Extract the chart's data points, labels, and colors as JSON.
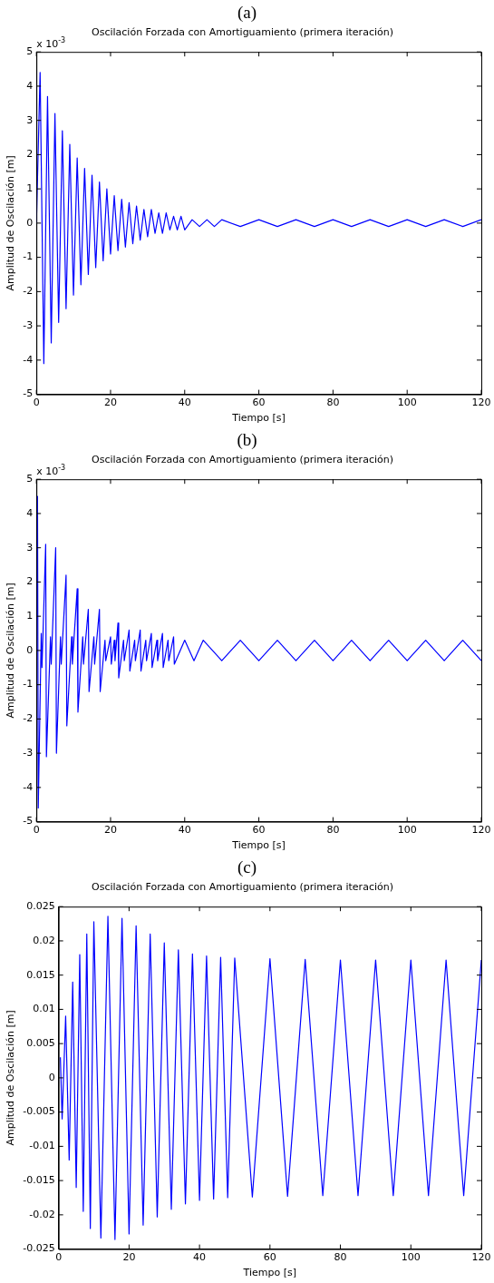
{
  "chart_data": [
    {
      "type": "line",
      "title": "(a)",
      "subtitle": "Oscilación Forzada con Amortiguamiento (primera iteración)",
      "xlabel": "Tiempo [s]",
      "ylabel": "Amplitud de Oscilación [m]",
      "annotations": [
        "x 10$^{-3}$"
      ],
      "color": "#0000ff",
      "marker": "none",
      "grid": false,
      "x": [
        0,
        1,
        2,
        3,
        4,
        5,
        6,
        7,
        8,
        9,
        10,
        11,
        12,
        13,
        14,
        15,
        16,
        17,
        18,
        19,
        20,
        21,
        22,
        23,
        24,
        25,
        26,
        27,
        28,
        29,
        30,
        31,
        32,
        33,
        34,
        35,
        36,
        37,
        38,
        39,
        40,
        42,
        44,
        46,
        48,
        50,
        55,
        60,
        65,
        70,
        75,
        80,
        85,
        90,
        95,
        100,
        105,
        110,
        115,
        120
      ],
      "values": [
        0,
        4.4,
        -4.1,
        3.7,
        -3.5,
        3.2,
        -2.9,
        2.7,
        -2.5,
        2.3,
        -2.1,
        1.9,
        -1.8,
        1.6,
        -1.5,
        1.4,
        -1.3,
        1.2,
        -1.1,
        1.0,
        -0.9,
        0.8,
        -0.8,
        0.7,
        -0.7,
        0.6,
        -0.6,
        0.5,
        -0.5,
        0.4,
        -0.4,
        0.4,
        -0.3,
        0.3,
        -0.3,
        0.3,
        -0.2,
        0.2,
        -0.2,
        0.2,
        -0.2,
        0.1,
        -0.1,
        0.1,
        -0.1,
        0.1,
        -0.1,
        0.1,
        -0.1,
        0.1,
        -0.1,
        0.1,
        -0.1,
        0.1,
        -0.1,
        0.1,
        -0.1,
        0.1,
        -0.1,
        0.1
      ],
      "xlim": [
        0,
        120
      ],
      "xticks": [
        0,
        20,
        40,
        60,
        80,
        100,
        120
      ],
      "ylim": [
        -5,
        5
      ],
      "yticks": [
        -5,
        -4,
        -3,
        -2,
        -1,
        0,
        1,
        2,
        3,
        4,
        5
      ]
    },
    {
      "type": "line",
      "title": "(b)",
      "subtitle": "Oscilación Forzada con Amortiguamiento (primera iteración)",
      "xlabel": "Tiempo [s]",
      "ylabel": "Amplitud de Oscilación [m]",
      "annotations": [
        "x 10$^{-3}$"
      ],
      "color": "#0000ff",
      "marker": "none",
      "grid": false,
      "x": [
        0,
        0.3,
        0.5,
        1.3,
        1.5,
        2.5,
        2.7,
        3.8,
        4,
        5.2,
        5.4,
        6.5,
        6.7,
        8,
        8.2,
        9.5,
        9.7,
        11,
        11.2,
        12.5,
        12.7,
        14,
        14.2,
        15.5,
        15.7,
        17,
        17.2,
        18.5,
        18.7,
        20,
        20.2,
        21,
        21.2,
        22,
        22.2,
        23.5,
        23.7,
        25,
        25.2,
        26.5,
        26.7,
        28,
        28.2,
        29.5,
        29.7,
        31,
        31.2,
        32.5,
        32.7,
        34,
        34.2,
        35.5,
        35.7,
        37,
        37.2,
        40,
        42.5,
        45,
        50,
        55,
        60,
        65,
        70,
        75,
        80,
        85,
        90,
        95,
        100,
        105,
        110,
        115,
        120
      ],
      "values": [
        0,
        4.5,
        -4.6,
        0.5,
        -0.5,
        3.1,
        -3.1,
        0.4,
        -0.4,
        3.0,
        -3.0,
        0.4,
        -0.4,
        2.2,
        -2.2,
        0.4,
        -0.4,
        1.8,
        -1.8,
        0.4,
        -0.4,
        1.2,
        -1.2,
        0.4,
        -0.4,
        1.2,
        -1.2,
        0.3,
        -0.3,
        0.4,
        -0.4,
        0.3,
        -0.3,
        0.8,
        -0.8,
        0.3,
        -0.3,
        0.6,
        -0.6,
        0.3,
        -0.3,
        0.6,
        -0.6,
        0.3,
        -0.3,
        0.5,
        -0.5,
        0.3,
        -0.3,
        0.5,
        -0.5,
        0.3,
        -0.3,
        0.4,
        -0.4,
        0.3,
        -0.3,
        0.3,
        -0.3,
        0.3,
        -0.3,
        0.3,
        -0.3,
        0.3,
        -0.3,
        0.3,
        -0.3,
        0.3,
        -0.3,
        0.3,
        -0.3,
        0.3,
        -0.3
      ],
      "xlim": [
        0,
        120
      ],
      "xticks": [
        0,
        20,
        40,
        60,
        80,
        100,
        120
      ],
      "ylim": [
        -5,
        5
      ],
      "yticks": [
        -5,
        -4,
        -3,
        -2,
        -1,
        0,
        1,
        2,
        3,
        4,
        5
      ]
    },
    {
      "type": "line",
      "title": "(c)",
      "subtitle": "Oscilación Forzada con Amortiguamiento (primera iteración)",
      "xlabel": "Tiempo [s]",
      "ylabel": "Amplitud de Oscilación [m]",
      "color": "#0000ff",
      "marker": "none",
      "grid": false,
      "x": [
        0.5,
        1,
        2,
        3,
        4,
        5,
        6,
        7,
        8,
        9,
        10,
        12,
        14,
        16,
        18,
        20,
        22,
        24,
        26,
        28,
        30,
        32,
        34,
        36,
        38,
        40,
        42,
        44,
        46,
        48,
        50,
        55,
        60,
        65,
        70,
        75,
        80,
        85,
        90,
        95,
        100,
        105,
        110,
        115,
        120
      ],
      "values": [
        0.003,
        -0.006,
        0.009,
        -0.012,
        0.014,
        -0.016,
        0.018,
        -0.0195,
        0.021,
        -0.022,
        0.0228,
        -0.0234,
        0.0236,
        -0.0236,
        0.0233,
        -0.0228,
        0.0222,
        -0.0215,
        0.021,
        -0.0203,
        0.0197,
        -0.0192,
        0.0187,
        -0.0184,
        0.0181,
        -0.0179,
        0.0178,
        -0.0177,
        0.0176,
        -0.0175,
        0.0175,
        -0.0174,
        0.0174,
        -0.0173,
        0.0173,
        -0.0172,
        0.0172,
        -0.0172,
        0.0172,
        -0.0172,
        0.0172,
        -0.0172,
        0.0172,
        -0.0172,
        0.0172
      ],
      "xlim": [
        0,
        120
      ],
      "xticks": [
        0,
        20,
        40,
        60,
        80,
        100,
        120
      ],
      "ylim": [
        -0.025,
        0.025
      ],
      "yticks": [
        -0.025,
        -0.02,
        -0.015,
        -0.01,
        -0.005,
        0,
        0.005,
        0.01,
        0.015,
        0.02,
        0.025
      ]
    }
  ]
}
